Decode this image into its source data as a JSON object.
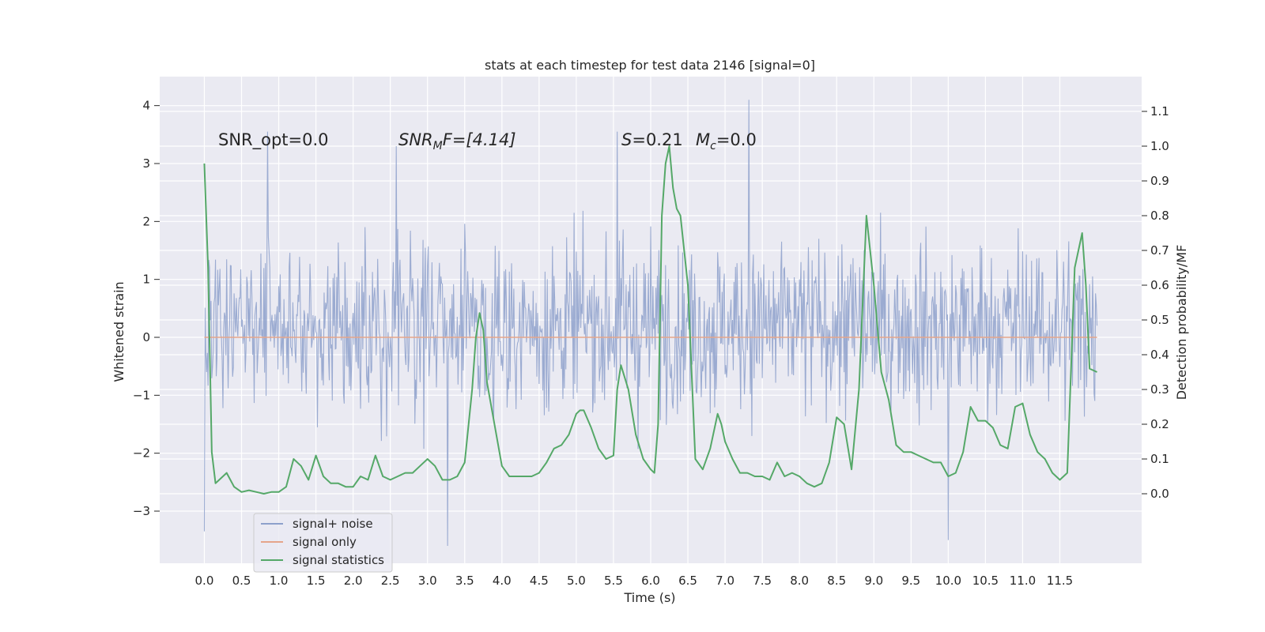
{
  "chart_data": {
    "type": "line",
    "title": "stats at each timestep for test data 2146 [signal=0]",
    "xlabel": "Time (s)",
    "ylabel_left": "Whitened strain",
    "ylabel_right": "Detection probability/MF",
    "xlim": [
      -0.6,
      12.6
    ],
    "ylim_left": [
      -3.9,
      4.5
    ],
    "ylim_right": [
      -0.2,
      1.2
    ],
    "x_ticks": [
      "0.0",
      "0.5",
      "1.0",
      "1.5",
      "2.0",
      "2.5",
      "3.0",
      "3.5",
      "4.0",
      "4.5",
      "5.0",
      "5.5",
      "6.0",
      "6.5",
      "7.0",
      "7.5",
      "8.0",
      "8.5",
      "9.0",
      "9.5",
      "10.0",
      "10.5",
      "11.0",
      "11.5"
    ],
    "y_left_ticks": [
      "−3",
      "−2",
      "−1",
      "0",
      "1",
      "2",
      "3",
      "4"
    ],
    "y_right_ticks": [
      "0.0",
      "0.1",
      "0.2",
      "0.3",
      "0.4",
      "0.5",
      "0.6",
      "0.7",
      "0.8",
      "0.9",
      "1.0",
      "1.1"
    ],
    "grid": true,
    "legend_position": "lower-left",
    "annotations": {
      "snr_opt": "SNR_opt=0.0",
      "snr_mf_main": "SNR",
      "snr_mf_sub": "M",
      "snr_mf_rest": "F=[4.14]",
      "s_main": "S",
      "s_rest": "=0.21",
      "mc_main": "M",
      "mc_sub": "c",
      "mc_rest": "=0.0"
    },
    "series": [
      {
        "name": "signal+ noise",
        "axis": "left",
        "color": "#8da0cb",
        "kind": "noise",
        "x_range": [
          0.0,
          12.0
        ],
        "typical_range": [
          -1.6,
          2.0
        ],
        "extremes": [
          {
            "x": 0.0,
            "y": -3.35
          },
          {
            "x": 0.85,
            "y": 3.55
          },
          {
            "x": 2.58,
            "y": 3.3
          },
          {
            "x": 3.27,
            "y": -3.6
          },
          {
            "x": 5.55,
            "y": 3.55
          },
          {
            "x": 7.32,
            "y": 4.1
          },
          {
            "x": 10.0,
            "y": -3.5
          }
        ]
      },
      {
        "name": "signal only",
        "axis": "left",
        "color": "#e5a58a",
        "x": [
          0.0,
          12.0
        ],
        "y": [
          0.0,
          0.0
        ]
      },
      {
        "name": "signal statistics",
        "axis": "right",
        "color": "#55a868",
        "x": [
          0.0,
          0.05,
          0.1,
          0.15,
          0.2,
          0.3,
          0.4,
          0.5,
          0.6,
          0.7,
          0.8,
          0.9,
          1.0,
          1.1,
          1.2,
          1.3,
          1.4,
          1.5,
          1.6,
          1.7,
          1.8,
          1.9,
          2.0,
          2.1,
          2.2,
          2.3,
          2.4,
          2.5,
          2.6,
          2.7,
          2.8,
          2.9,
          3.0,
          3.1,
          3.2,
          3.3,
          3.4,
          3.5,
          3.6,
          3.65,
          3.7,
          3.75,
          3.8,
          3.85,
          3.9,
          4.0,
          4.1,
          4.2,
          4.3,
          4.4,
          4.5,
          4.6,
          4.7,
          4.8,
          4.9,
          5.0,
          5.05,
          5.1,
          5.2,
          5.3,
          5.4,
          5.5,
          5.55,
          5.6,
          5.7,
          5.8,
          5.9,
          6.0,
          6.05,
          6.1,
          6.15,
          6.2,
          6.25,
          6.3,
          6.35,
          6.4,
          6.5,
          6.6,
          6.7,
          6.8,
          6.9,
          6.95,
          7.0,
          7.1,
          7.2,
          7.3,
          7.4,
          7.5,
          7.6,
          7.7,
          7.8,
          7.9,
          8.0,
          8.1,
          8.2,
          8.3,
          8.4,
          8.5,
          8.6,
          8.7,
          8.8,
          8.9,
          9.0,
          9.1,
          9.2,
          9.3,
          9.4,
          9.5,
          9.6,
          9.7,
          9.8,
          9.9,
          10.0,
          10.1,
          10.2,
          10.3,
          10.4,
          10.5,
          10.6,
          10.7,
          10.8,
          10.9,
          11.0,
          11.1,
          11.2,
          11.3,
          11.4,
          11.5,
          11.6,
          11.7,
          11.8,
          11.85,
          11.9,
          12.0
        ],
        "y": [
          0.95,
          0.65,
          0.12,
          0.03,
          0.04,
          0.06,
          0.02,
          0.005,
          0.01,
          0.005,
          0.0,
          0.005,
          0.005,
          0.02,
          0.1,
          0.08,
          0.04,
          0.11,
          0.05,
          0.03,
          0.03,
          0.02,
          0.02,
          0.05,
          0.04,
          0.11,
          0.05,
          0.04,
          0.05,
          0.06,
          0.06,
          0.08,
          0.1,
          0.08,
          0.04,
          0.04,
          0.05,
          0.09,
          0.3,
          0.45,
          0.52,
          0.47,
          0.32,
          0.26,
          0.2,
          0.08,
          0.05,
          0.05,
          0.05,
          0.05,
          0.06,
          0.09,
          0.13,
          0.14,
          0.17,
          0.23,
          0.24,
          0.24,
          0.19,
          0.13,
          0.1,
          0.11,
          0.3,
          0.37,
          0.3,
          0.17,
          0.1,
          0.07,
          0.06,
          0.2,
          0.8,
          0.95,
          1.0,
          0.88,
          0.82,
          0.8,
          0.6,
          0.1,
          0.07,
          0.13,
          0.23,
          0.2,
          0.15,
          0.1,
          0.06,
          0.06,
          0.05,
          0.05,
          0.04,
          0.09,
          0.05,
          0.06,
          0.05,
          0.03,
          0.02,
          0.03,
          0.09,
          0.22,
          0.2,
          0.07,
          0.3,
          0.8,
          0.6,
          0.35,
          0.27,
          0.14,
          0.12,
          0.12,
          0.11,
          0.1,
          0.09,
          0.09,
          0.05,
          0.06,
          0.12,
          0.25,
          0.21,
          0.21,
          0.19,
          0.14,
          0.13,
          0.25,
          0.26,
          0.17,
          0.12,
          0.1,
          0.06,
          0.04,
          0.06,
          0.65,
          0.75,
          0.6,
          0.36,
          0.35
        ]
      }
    ]
  }
}
